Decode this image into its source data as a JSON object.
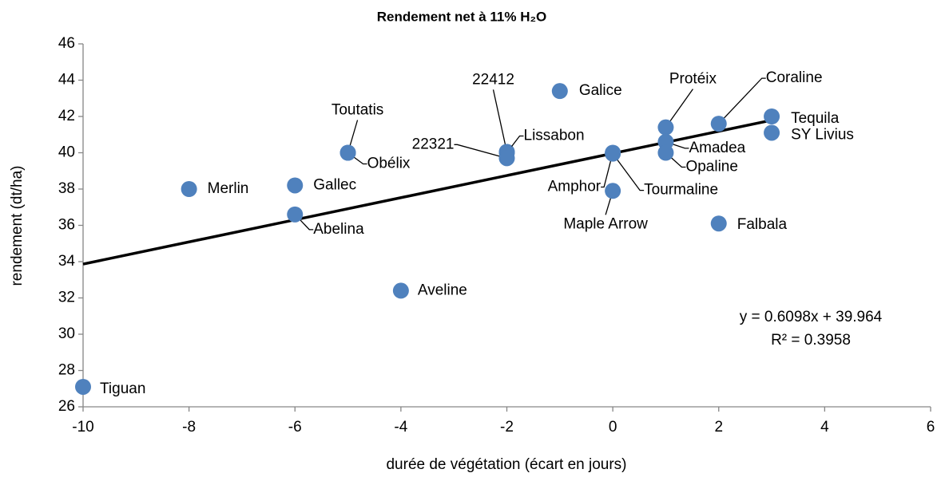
{
  "chart_data": {
    "type": "scatter",
    "title": "Rendement net à 11% H₂O",
    "x_label": "durée de végétation (écart en jours)",
    "y_label": "rendement (dt/ha)",
    "series": [
      {
        "color": "#4f81bd",
        "labels": [
          "Tiguan",
          "Merlin",
          "Gallec",
          "Abelina",
          "Toutatis",
          "Obélix",
          "Aveline",
          "22412",
          "Lissabon",
          "22321",
          "Galice",
          "Amphor",
          "Tourmaline",
          "Maple Arrow",
          "Protéix",
          "Amadea",
          "Opaline",
          "Coraline",
          "Falbala",
          "Tequila",
          "SY Livius"
        ],
        "x": [
          -10,
          -8,
          -6,
          -6,
          -5,
          -5,
          -4,
          -2,
          -2,
          -2,
          -1,
          0,
          0,
          0,
          1,
          1,
          1,
          2,
          2,
          3,
          3
        ],
        "values": [
          27.1,
          38.0,
          38.2,
          36.6,
          40.0,
          40.0,
          32.4,
          40.05,
          40.0,
          39.7,
          43.4,
          40.0,
          39.95,
          37.9,
          41.4,
          40.6,
          40.0,
          41.6,
          36.1,
          42.0,
          41.1
        ]
      }
    ],
    "trendline": {
      "x": [
        -10,
        3
      ],
      "values": [
        33.866,
        41.793
      ],
      "color": "#000000"
    },
    "annotations": [
      "y = 0.6098x + 39.964",
      "R² = 0.3958"
    ],
    "xlim": [
      -10,
      6
    ],
    "xticks": [
      -10,
      -8,
      -6,
      -4,
      -2,
      0,
      2,
      4,
      6
    ],
    "ylim": [
      26,
      46
    ],
    "yticks": [
      26,
      28,
      30,
      32,
      34,
      36,
      38,
      40,
      42,
      44,
      46
    ],
    "grid": false
  }
}
